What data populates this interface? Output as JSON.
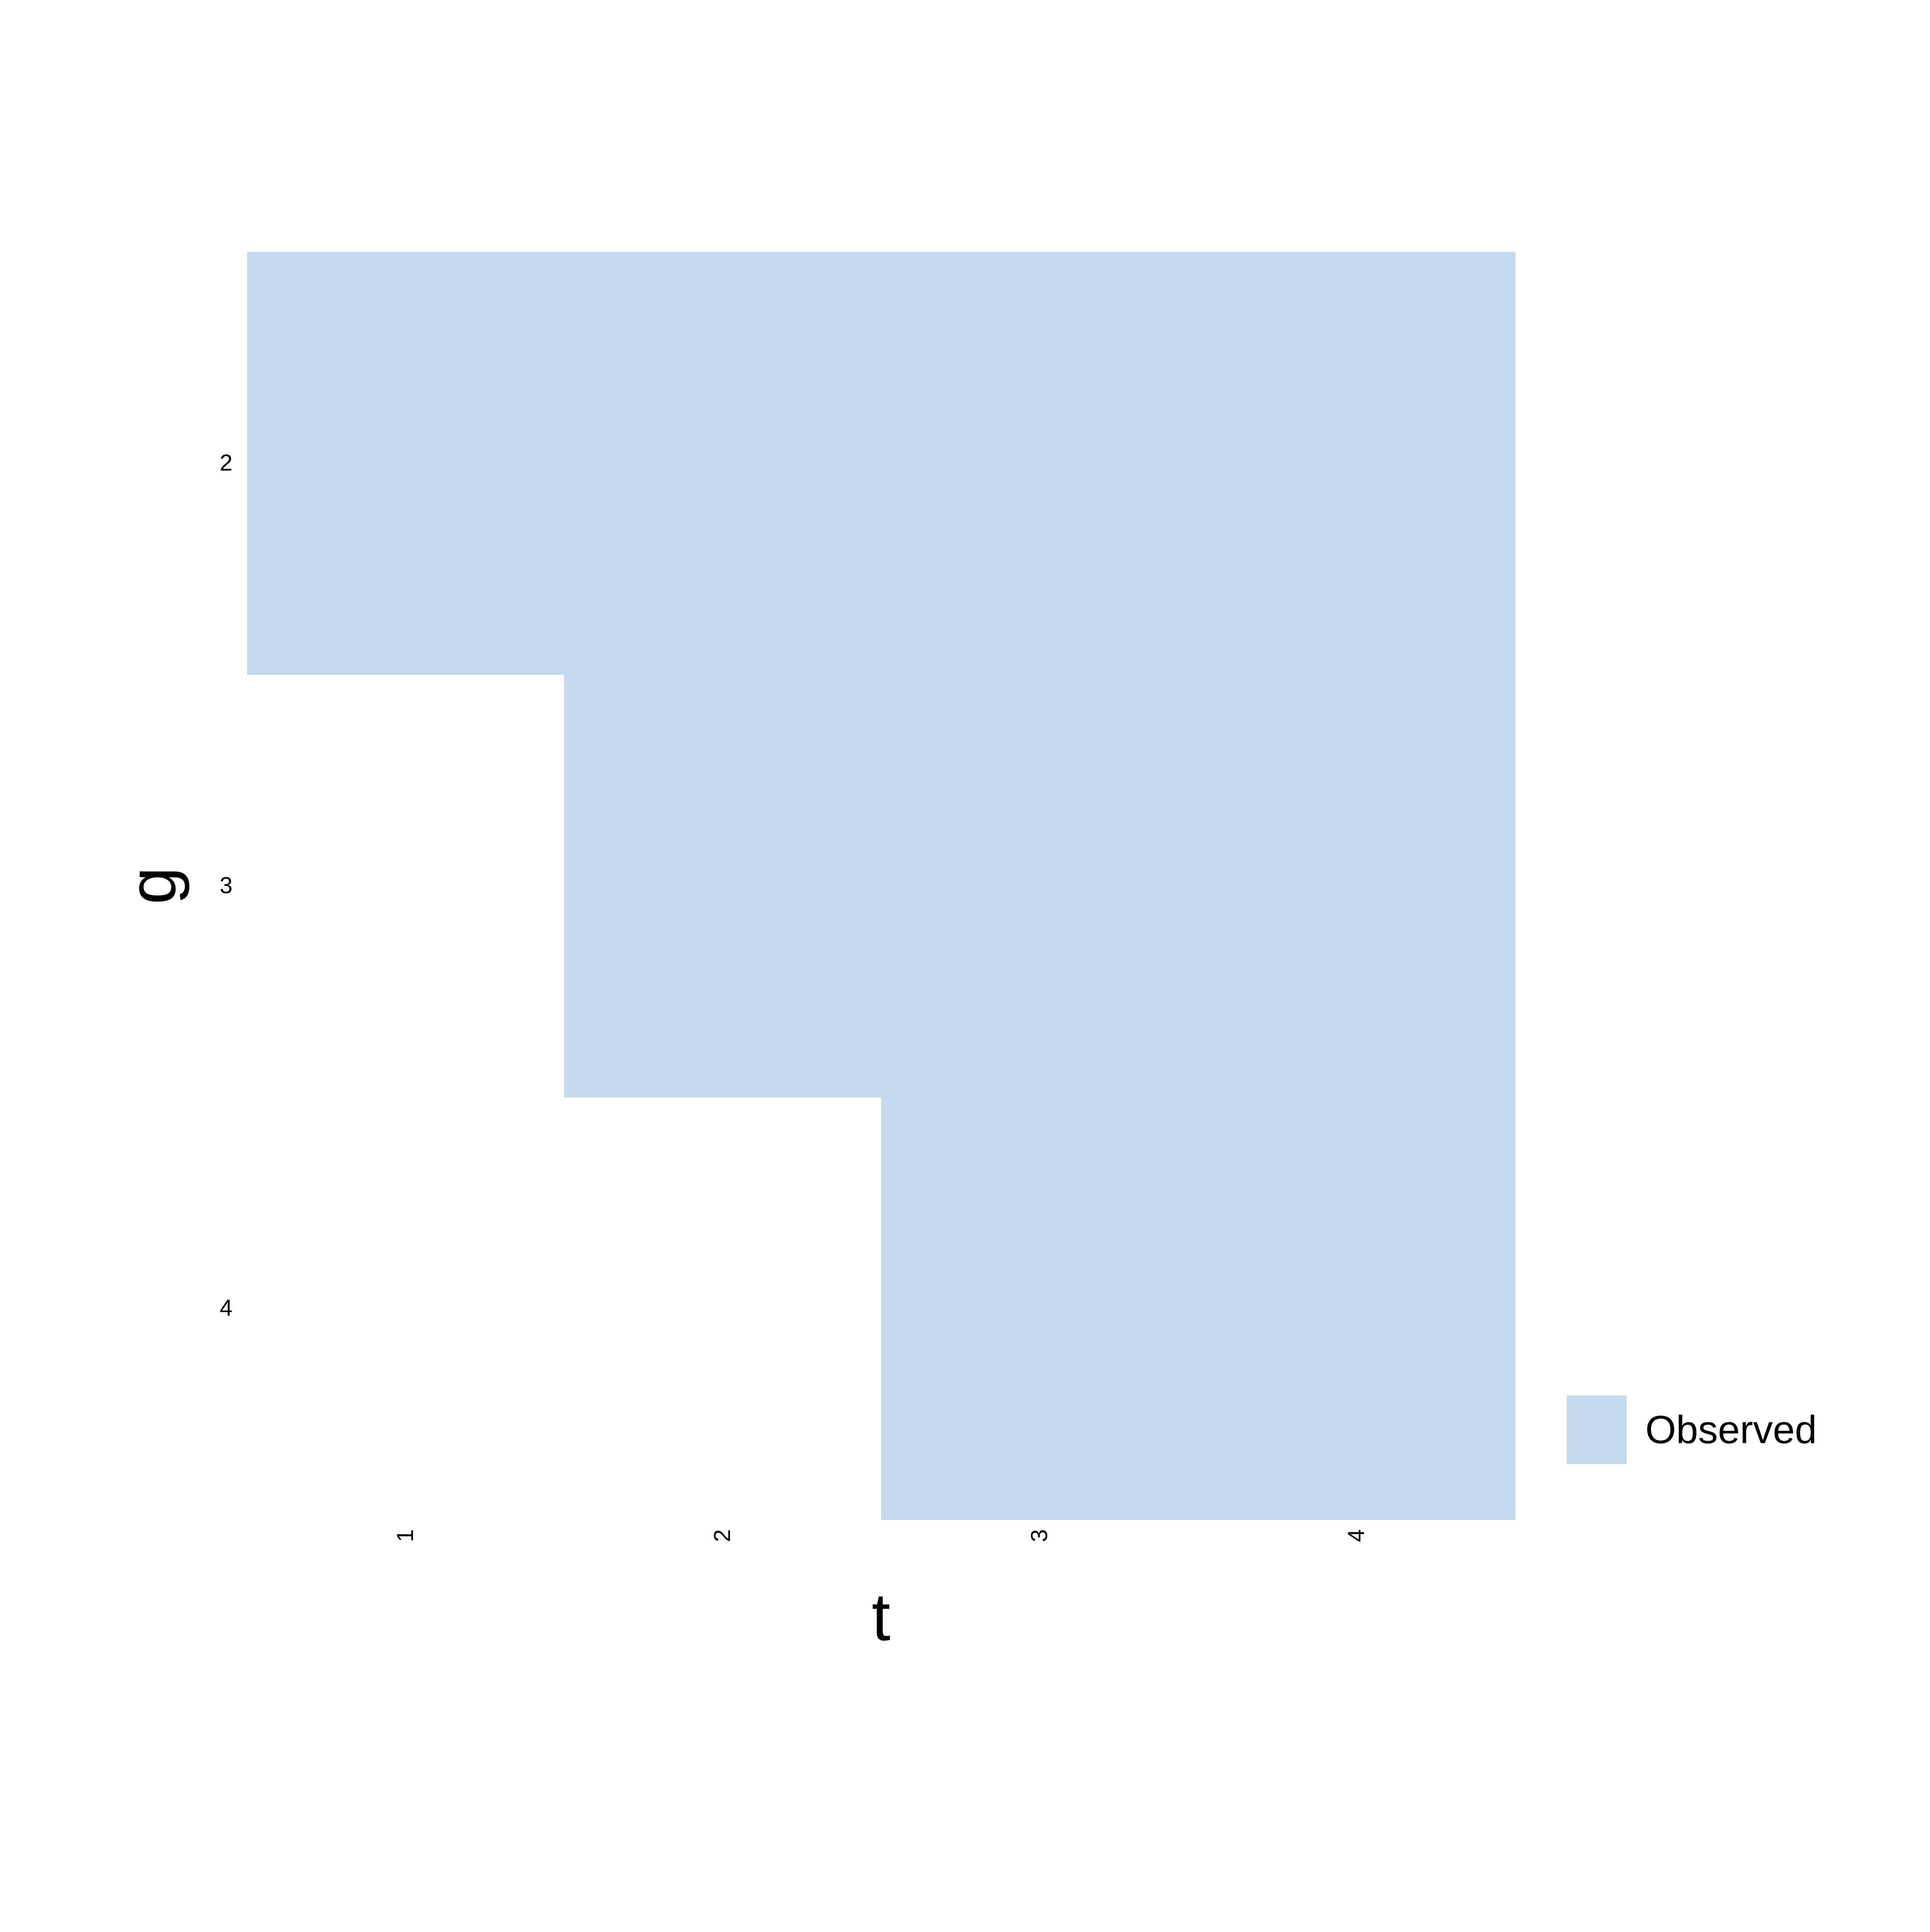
{
  "chart_data": {
    "type": "heatmap",
    "title": "",
    "xlabel": "t",
    "ylabel": "g",
    "x_categories": [
      "1",
      "2",
      "3",
      "4"
    ],
    "y_categories": [
      "2",
      "3",
      "4"
    ],
    "cells": [
      {
        "g": "2",
        "t": "1",
        "status": "Observed"
      },
      {
        "g": "2",
        "t": "2",
        "status": "Observed"
      },
      {
        "g": "2",
        "t": "3",
        "status": "Observed"
      },
      {
        "g": "2",
        "t": "4",
        "status": "Observed"
      },
      {
        "g": "3",
        "t": "2",
        "status": "Observed"
      },
      {
        "g": "3",
        "t": "3",
        "status": "Observed"
      },
      {
        "g": "3",
        "t": "4",
        "status": "Observed"
      },
      {
        "g": "4",
        "t": "3",
        "status": "Observed"
      },
      {
        "g": "4",
        "t": "4",
        "status": "Observed"
      }
    ],
    "legend": {
      "position": "bottom-right",
      "entries": [
        {
          "label": "Observed",
          "color": "#c5daee"
        }
      ]
    },
    "grid": false,
    "x_tick_rotation": "vertical"
  }
}
